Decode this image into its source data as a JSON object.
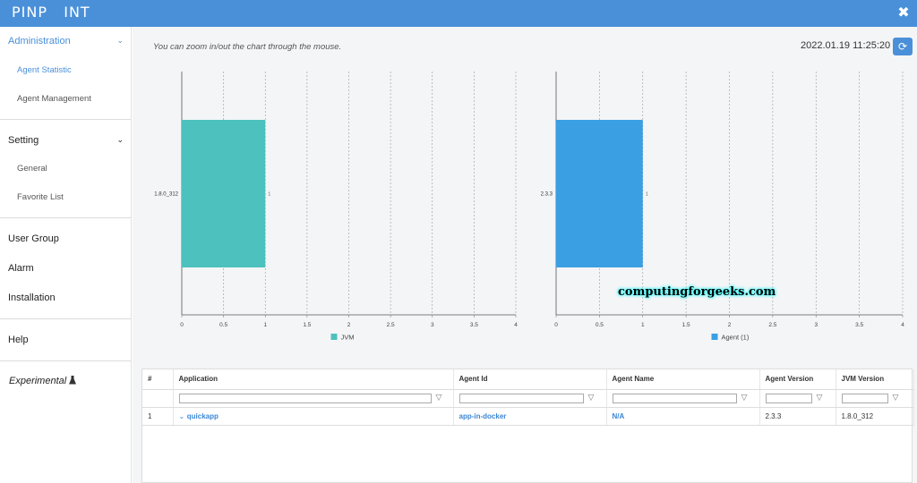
{
  "header": {
    "logo": "PINP   INT",
    "close_icon": "close-icon"
  },
  "sidebar": {
    "administration": "Administration",
    "agent_statistic": "Agent Statistic",
    "agent_management": "Agent Management",
    "setting": "Setting",
    "general": "General",
    "favorite_list": "Favorite List",
    "user_group": "User Group",
    "alarm": "Alarm",
    "installation": "Installation",
    "help": "Help",
    "experimental": "Experimental"
  },
  "toolbar": {
    "hint": "You can zoom in/out the chart through the mouse.",
    "datetime": "2022.01.19 11:25:20",
    "refresh_icon": "refresh-icon"
  },
  "watermark": "computingforgeeks.com",
  "chart_data": [
    {
      "type": "bar",
      "orientation": "horizontal",
      "categories": [
        "1.8.0_312"
      ],
      "values": [
        1
      ],
      "value_labels": [
        "1"
      ],
      "legend": [
        "JVM"
      ],
      "color": "#4cc1bd",
      "xlim": [
        0,
        4
      ],
      "xticks": [
        "0",
        "0.5",
        "1",
        "1.5",
        "2",
        "2.5",
        "3",
        "3.5",
        "4"
      ]
    },
    {
      "type": "bar",
      "orientation": "horizontal",
      "categories": [
        "2.3.3"
      ],
      "values": [
        1
      ],
      "value_labels": [
        "1"
      ],
      "legend": [
        "Agent (1)"
      ],
      "color": "#3a9fe3",
      "xlim": [
        0,
        4
      ],
      "xticks": [
        "0",
        "0.5",
        "1",
        "1.5",
        "2",
        "2.5",
        "3",
        "3.5",
        "4"
      ]
    }
  ],
  "table": {
    "columns": [
      "#",
      "Application",
      "Agent Id",
      "Agent Name",
      "Agent Version",
      "JVM Version"
    ],
    "rows": [
      {
        "num": "1",
        "application": "quickapp",
        "agent_id": "app-in-docker",
        "agent_name": "N/A",
        "agent_version": "2.3.3",
        "jvm_version": "1.8.0_312"
      }
    ]
  }
}
